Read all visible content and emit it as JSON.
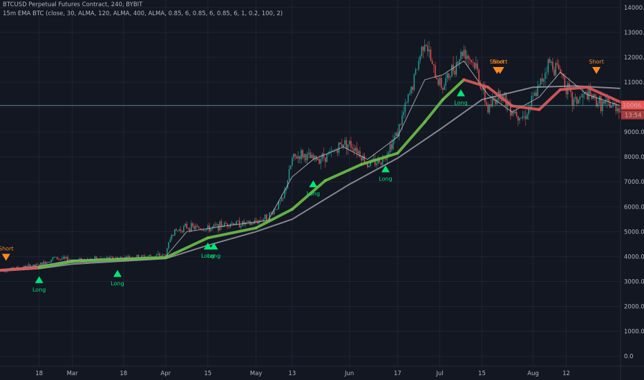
{
  "header": {
    "symbol_line": "BTCUSD Perpetual Futures Contract, 240, BYBIT",
    "indicator_line": "15m EMA BTC (close, 30, ALMA, 120, ALMA, 400, ALMA, 0.85, 6, 0.85, 6, 0.85, 6, 1, 0.2, 100, 2)"
  },
  "price_tag": {
    "price": "10066.5",
    "countdown": "13:54"
  },
  "colors": {
    "background": "#131722",
    "grid": "#1f2433",
    "axis_text": "#b2b5be",
    "candle_up": "#26a69a",
    "candle_down": "#ef5350",
    "fast_line": "#c2c5cc",
    "mid_line_bull": "#6cc04a",
    "mid_line_bear": "#e05a5a",
    "slow_line": "#9a9ca3",
    "long_signal": "#00e676",
    "short_signal": "#ff8a1f",
    "price_line": "#5f9ea0",
    "price_tag": "#ef5350"
  },
  "chart_data": {
    "type": "line",
    "title": "BTCUSD Perpetual Futures Contract, 240, BYBIT",
    "ylim": [
      -400,
      14300
    ],
    "y_ticks": [
      0,
      1000,
      2000,
      3000,
      4000,
      5000,
      6000,
      7000,
      8000,
      9000,
      10000,
      11000,
      12000,
      13000,
      14000
    ],
    "y_tick_labels": [
      "0.0",
      "1000.0",
      "2000.0",
      "3000.0",
      "4000.0",
      "5000.0",
      "6000.0",
      "7000.0",
      "8000.0",
      "9000.0",
      "10000.0",
      "11000.0",
      "12000.0",
      "13000.0",
      "14000.0"
    ],
    "x_tick_labels": [
      {
        "label": "18",
        "date": "2019-02-18"
      },
      {
        "label": "Mar",
        "date": "2019-03-01"
      },
      {
        "label": "18",
        "date": "2019-03-18"
      },
      {
        "label": "Apr",
        "date": "2019-04-01"
      },
      {
        "label": "15",
        "date": "2019-04-15"
      },
      {
        "label": "May",
        "date": "2019-05-01"
      },
      {
        "label": "13",
        "date": "2019-05-13"
      },
      {
        "label": "Jun",
        "date": "2019-06-01"
      },
      {
        "label": "17",
        "date": "2019-06-17"
      },
      {
        "label": "Jul",
        "date": "2019-07-01"
      },
      {
        "label": "15",
        "date": "2019-07-15"
      },
      {
        "label": "Aug",
        "date": "2019-08-01"
      },
      {
        "label": "12",
        "date": "2019-08-12"
      }
    ],
    "x_range": [
      "2019-02-05",
      "2019-08-30"
    ],
    "current_price": 10066.5,
    "price_series": {
      "name": "BTCUSD",
      "dates": [
        "2019-02-05",
        "2019-02-12",
        "2019-02-18",
        "2019-02-23",
        "2019-03-01",
        "2019-03-10",
        "2019-03-18",
        "2019-03-25",
        "2019-04-01",
        "2019-04-03",
        "2019-04-08",
        "2019-04-15",
        "2019-04-22",
        "2019-04-29",
        "2019-05-05",
        "2019-05-10",
        "2019-05-13",
        "2019-05-16",
        "2019-05-20",
        "2019-05-26",
        "2019-05-30",
        "2019-06-03",
        "2019-06-07",
        "2019-06-12",
        "2019-06-17",
        "2019-06-22",
        "2019-06-26",
        "2019-06-29",
        "2019-07-02",
        "2019-07-06",
        "2019-07-09",
        "2019-07-13",
        "2019-07-17",
        "2019-07-21",
        "2019-07-25",
        "2019-07-29",
        "2019-08-03",
        "2019-08-06",
        "2019-08-10",
        "2019-08-14",
        "2019-08-19",
        "2019-08-24",
        "2019-08-30"
      ],
      "values": [
        3450,
        3550,
        3650,
        3950,
        3850,
        3900,
        3950,
        4000,
        4050,
        4950,
        5200,
        5100,
        5350,
        5300,
        5600,
        6300,
        7900,
        8100,
        7900,
        8100,
        8600,
        8400,
        7700,
        7900,
        9000,
        10900,
        12800,
        11400,
        10800,
        11700,
        12300,
        11600,
        9900,
        10600,
        9900,
        9600,
        10800,
        11800,
        11500,
        10200,
        10500,
        10100,
        10000
      ]
    },
    "series": [
      {
        "dates": [
          "2019-02-05",
          "2019-02-18",
          "2019-03-01",
          "2019-04-01",
          "2019-04-08",
          "2019-04-22",
          "2019-05-05",
          "2019-05-13",
          "2019-05-20",
          "2019-05-30",
          "2019-06-07",
          "2019-06-17",
          "2019-06-26",
          "2019-07-02",
          "2019-07-09",
          "2019-07-17",
          "2019-07-25",
          "2019-08-03",
          "2019-08-10",
          "2019-08-19",
          "2019-08-30"
        ],
        "values": [
          3480,
          3620,
          3860,
          4000,
          5000,
          5250,
          5450,
          7200,
          7900,
          8400,
          7900,
          8800,
          11100,
          11300,
          11850,
          10500,
          9800,
          10400,
          11400,
          10500,
          10050
        ]
      },
      {
        "dates": [
          "2019-02-05",
          "2019-02-18",
          "2019-03-01",
          "2019-04-01",
          "2019-04-15",
          "2019-05-01",
          "2019-05-13",
          "2019-05-24",
          "2019-06-05",
          "2019-06-17",
          "2019-06-26",
          "2019-07-02",
          "2019-07-09",
          "2019-07-17",
          "2019-07-25",
          "2019-08-03",
          "2019-08-10",
          "2019-08-19",
          "2019-08-30"
        ],
        "values": [
          3450,
          3560,
          3800,
          3960,
          4750,
          5150,
          5900,
          7050,
          7700,
          8150,
          9400,
          10300,
          11100,
          10800,
          10050,
          9900,
          10700,
          10800,
          10200
        ]
      },
      {
        "dates": [
          "2019-02-05",
          "2019-02-18",
          "2019-03-01",
          "2019-04-01",
          "2019-04-15",
          "2019-05-01",
          "2019-05-13",
          "2019-06-01",
          "2019-06-17",
          "2019-07-01",
          "2019-07-15",
          "2019-08-01",
          "2019-08-15",
          "2019-08-30"
        ],
        "values": [
          3420,
          3520,
          3700,
          3920,
          4450,
          5000,
          5500,
          6900,
          7950,
          9100,
          10300,
          10800,
          10850,
          10750
        ]
      }
    ],
    "signals": [
      {
        "type": "Short",
        "date": "2019-02-07",
        "price": 3500
      },
      {
        "type": "Long",
        "date": "2019-02-18",
        "price": 3600
      },
      {
        "type": "Long",
        "date": "2019-03-16",
        "price": 3850
      },
      {
        "type": "Long",
        "date": "2019-04-15",
        "price": 4950
      },
      {
        "type": "Long",
        "date": "2019-04-17",
        "price": 4950
      },
      {
        "type": "Long",
        "date": "2019-05-20",
        "price": 7450
      },
      {
        "type": "Long",
        "date": "2019-06-13",
        "price": 8050
      },
      {
        "type": "Long",
        "date": "2019-07-08",
        "price": 11100
      },
      {
        "type": "Short",
        "date": "2019-07-20",
        "price": 11000
      },
      {
        "type": "Short",
        "date": "2019-07-21",
        "price": 11000
      },
      {
        "type": "Short",
        "date": "2019-08-22",
        "price": 11000
      }
    ]
  }
}
